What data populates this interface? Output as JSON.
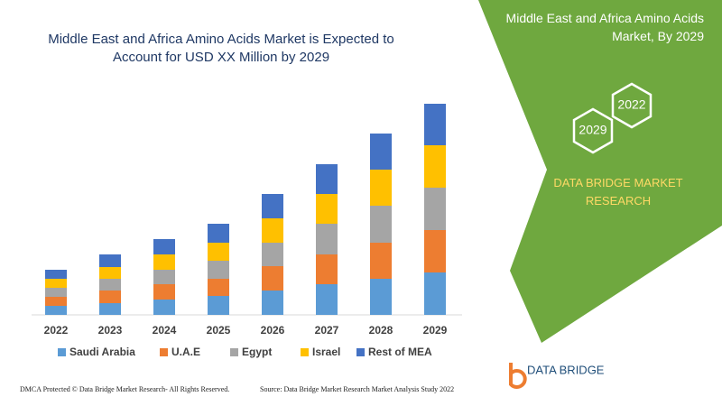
{
  "chart_data": {
    "type": "bar",
    "stacked": true,
    "title": "Middle East and Africa Amino Acids Market is Expected to Account for USD XX Million by 2029",
    "categories": [
      "2022",
      "2023",
      "2024",
      "2025",
      "2026",
      "2027",
      "2028",
      "2029"
    ],
    "series": [
      {
        "name": "Saudi Arabia",
        "color": "#5b9bd5",
        "values": [
          10,
          13,
          17,
          21,
          27,
          34,
          40,
          47
        ]
      },
      {
        "name": "U.A.E",
        "color": "#ed7d31",
        "values": [
          10,
          14,
          17,
          19,
          27,
          33,
          40,
          47
        ]
      },
      {
        "name": "Egypt",
        "color": "#a5a5a5",
        "values": [
          10,
          13,
          16,
          20,
          26,
          34,
          41,
          47
        ]
      },
      {
        "name": "Israel",
        "color": "#ffc000",
        "values": [
          10,
          13,
          17,
          20,
          27,
          33,
          40,
          47
        ]
      },
      {
        "name": "Rest of MEA",
        "color": "#4472c4",
        "values": [
          10,
          14,
          17,
          21,
          27,
          33,
          40,
          46
        ]
      }
    ],
    "ylim": [
      0,
      240
    ]
  },
  "panel": {
    "title": "Middle East and Africa Amino Acids Market, By 2029",
    "hexagons": [
      "2022",
      "2029"
    ],
    "brand": "DATA BRIDGE MARKET RESEARCH"
  },
  "logo": {
    "text": "DATA BRIDGE"
  },
  "footer": {
    "left": "DMCA Protected © Data Bridge Market Research- All Rights Reserved.",
    "right": "Source: Data Bridge Market Research Market Analysis Study 2022"
  }
}
